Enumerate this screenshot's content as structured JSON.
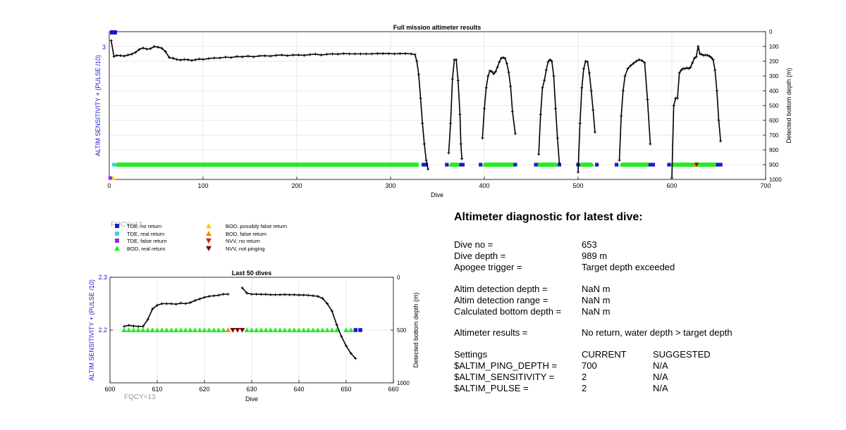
{
  "top_chart": {
    "title": "Full mission altimeter results",
    "xlabel": "Dive",
    "ylabel_left": "ALTIM SENSITIVITY + (PULSE /10)",
    "ylabel_right": "Detected bottom depth (m)",
    "x_ticks": [
      "0",
      "100",
      "200",
      "300",
      "400",
      "500",
      "600",
      "700"
    ],
    "y_left_ticks": [
      "3"
    ],
    "y_right_ticks": [
      "0",
      "100",
      "200",
      "300",
      "400",
      "500",
      "600",
      "700",
      "800",
      "900",
      "1000"
    ]
  },
  "legend": {
    "overlay_text": "FQCY=13",
    "items": [
      {
        "label": "TDE, no return",
        "marker": "square",
        "color": "#1a1acc"
      },
      {
        "label": "TDE, real return",
        "marker": "square",
        "color": "#33d6e0"
      },
      {
        "label": "TDE, false return",
        "marker": "square",
        "color": "#8a2be2"
      },
      {
        "label": "BOD, real return",
        "marker": "triangle-up",
        "color": "#22ee22"
      },
      {
        "label": "BOD, possibly false return",
        "marker": "triangle-up",
        "color": "#f5d000"
      },
      {
        "label": "BOD, false return",
        "marker": "triangle-up",
        "color": "#f08a00"
      },
      {
        "label": "NVV, no return",
        "marker": "triangle-down",
        "color": "#d42000"
      },
      {
        "label": "NVV, not pinging",
        "marker": "triangle-down",
        "color": "#7a0a0a"
      }
    ]
  },
  "bottom_chart": {
    "title": "Last 50 dives",
    "xlabel": "Dive",
    "ylabel_left": "ALTIM SENSITIVITY + (PULSE /10)",
    "ylabel_right": "Detected bottom depth (m)",
    "annotation": "FQCY=13",
    "x_ticks": [
      "600",
      "610",
      "620",
      "630",
      "640",
      "650",
      "660"
    ],
    "y_left_ticks": [
      "2.3",
      "2.2"
    ],
    "y_right_ticks": [
      "0",
      "500",
      "1000"
    ]
  },
  "diagnostic": {
    "heading": "Altimeter diagnostic for latest dive:",
    "rows": [
      {
        "label": "Dive no =",
        "value": "653"
      },
      {
        "label": "Dive depth =",
        "value": "989 m"
      },
      {
        "label": "Apogee trigger =",
        "value": "Target depth exceeded"
      },
      {
        "label": "Altim detection depth =",
        "value": "NaN m"
      },
      {
        "label": "Altim detection range =",
        "value": "NaN m"
      },
      {
        "label": "Calculated bottom depth =",
        "value": "NaN m"
      },
      {
        "label": "Altimeter results =",
        "value": "No return, water depth > target depth"
      }
    ],
    "settings": {
      "header": [
        "Settings",
        "CURRENT",
        "SUGGESTED"
      ],
      "rows": [
        [
          "$ALTIM_PING_DEPTH =",
          "700",
          "N/A"
        ],
        [
          "$ALTIM_SENSITIVITY =",
          "2",
          "N/A"
        ],
        [
          "$ALTIM_PULSE =",
          "2",
          "N/A"
        ]
      ]
    }
  },
  "chart_data": [
    {
      "type": "line",
      "title": "Full mission altimeter results",
      "xlabel": "Dive",
      "ylabel": "Detected bottom depth (m)",
      "xlim": [
        0,
        700
      ],
      "ylim_right": [
        0,
        1000
      ],
      "y_right_reversed": true,
      "grid": true,
      "series": [
        {
          "x": [
            2,
            5,
            8,
            12,
            16,
            20,
            24,
            28,
            32,
            36,
            40,
            44,
            48,
            52,
            56,
            60,
            64,
            68,
            72,
            76,
            80,
            84,
            88,
            92,
            96,
            100,
            106,
            112,
            118,
            124,
            130,
            136,
            142,
            148,
            154,
            160,
            166,
            172,
            178,
            184,
            190,
            196,
            202,
            208,
            214,
            220,
            226,
            232,
            238,
            244,
            250,
            256,
            262,
            268,
            274,
            280,
            286,
            292,
            298,
            304,
            310,
            316,
            322,
            326,
            328,
            330,
            332,
            334,
            336,
            338,
            340
          ],
          "y": [
            60,
            168,
            160,
            162,
            165,
            158,
            152,
            140,
            120,
            110,
            118,
            115,
            100,
            105,
            112,
            135,
            175,
            180,
            188,
            192,
            188,
            190,
            195,
            190,
            185,
            188,
            182,
            178,
            178,
            172,
            175,
            168,
            170,
            165,
            170,
            164,
            163,
            165,
            160,
            158,
            162,
            158,
            158,
            160,
            155,
            152,
            158,
            153,
            150,
            152,
            148,
            150,
            150,
            150,
            150,
            150,
            148,
            148,
            148,
            150,
            148,
            148,
            150,
            155,
            200,
            290,
            450,
            620,
            760,
            870,
            930
          ]
        },
        {
          "x": [
            362,
            364,
            366,
            368,
            370,
            372,
            374,
            375,
            376
          ],
          "y": [
            820,
            620,
            320,
            190,
            190,
            330,
            560,
            760,
            860
          ]
        },
        {
          "x": [
            398,
            400,
            402,
            404,
            406,
            408,
            410,
            412,
            414,
            416,
            418,
            420,
            422,
            424,
            426,
            428,
            430,
            433
          ],
          "y": [
            720,
            520,
            380,
            300,
            265,
            270,
            285,
            270,
            240,
            205,
            180,
            175,
            180,
            215,
            275,
            370,
            540,
            690
          ]
        },
        {
          "x": [
            458,
            460,
            462,
            464,
            466,
            468,
            470,
            472,
            474,
            476,
            478,
            480
          ],
          "y": [
            830,
            560,
            380,
            330,
            260,
            205,
            190,
            200,
            300,
            520,
            720,
            890
          ]
        },
        {
          "x": [
            500,
            502,
            504,
            506,
            508,
            510,
            512,
            514,
            516,
            518
          ],
          "y": [
            950,
            620,
            380,
            250,
            200,
            205,
            280,
            400,
            530,
            680
          ]
        },
        {
          "x": [
            544,
            546,
            548,
            550,
            553,
            556,
            559,
            562,
            565,
            568,
            571,
            574,
            577
          ],
          "y": [
            870,
            570,
            400,
            300,
            250,
            230,
            215,
            200,
            190,
            195,
            210,
            460,
            760
          ]
        },
        {
          "x": [
            600,
            602,
            604,
            606,
            608,
            610,
            612,
            614,
            616,
            618,
            620,
            622,
            624,
            626,
            628,
            630,
            632,
            634,
            636,
            638,
            640,
            642,
            644,
            646,
            648,
            650,
            652
          ],
          "y": [
            990,
            500,
            450,
            450,
            280,
            260,
            250,
            250,
            245,
            250,
            240,
            210,
            180,
            170,
            100,
            150,
            155,
            160,
            158,
            160,
            165,
            175,
            190,
            260,
            400,
            600,
            740
          ]
        }
      ]
    },
    {
      "type": "line",
      "title": "Last 50 dives",
      "xlabel": "Dive",
      "ylabel": "Detected bottom depth (m)",
      "xlim": [
        600,
        660
      ],
      "ylim_left": [
        2.1,
        2.3
      ],
      "ylim_right": [
        0,
        1000
      ],
      "y_right_reversed": true,
      "grid": true,
      "series": [
        {
          "x": [
            603,
            604,
            605,
            606,
            607,
            608,
            609,
            610,
            611,
            612,
            613,
            614,
            615,
            616,
            617,
            618,
            619,
            620,
            621,
            622,
            623,
            624,
            625
          ],
          "y": [
            465,
            455,
            462,
            465,
            465,
            400,
            300,
            265,
            250,
            250,
            250,
            255,
            245,
            250,
            240,
            220,
            205,
            190,
            180,
            175,
            170,
            160,
            160
          ]
        },
        {
          "x": [
            628,
            629,
            630,
            631,
            632,
            633,
            634,
            635,
            636,
            637,
            638,
            639,
            640,
            641,
            642,
            643,
            644,
            645,
            646,
            647,
            648,
            649,
            650,
            651,
            652
          ],
          "y": [
            100,
            150,
            160,
            160,
            162,
            162,
            165,
            165,
            165,
            163,
            165,
            165,
            168,
            168,
            170,
            175,
            180,
            200,
            250,
            320,
            450,
            560,
            650,
            720,
            770
          ]
        }
      ],
      "markers": {
        "bod_real_return": [
          603,
          604,
          605,
          606,
          607,
          608,
          609,
          610,
          611,
          612,
          613,
          614,
          615,
          616,
          617,
          618,
          619,
          620,
          621,
          622,
          623,
          624,
          629,
          630,
          631,
          632,
          633,
          634,
          635,
          636,
          637,
          638,
          639,
          640,
          641,
          642,
          643,
          644,
          645,
          646,
          647,
          648,
          650,
          651
        ],
        "bod_false_return": [
          625
        ],
        "nvv_not_pinging": [
          626,
          627,
          628
        ],
        "tde_no_return": [
          652,
          653
        ]
      }
    }
  ]
}
